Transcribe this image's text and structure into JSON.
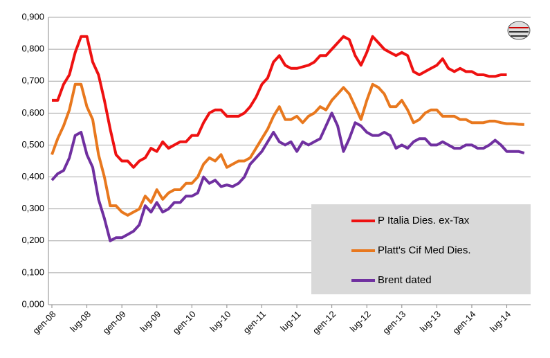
{
  "chart_data": {
    "type": "line",
    "categories": [
      "gen-08",
      null,
      null,
      null,
      null,
      null,
      "lug-08",
      null,
      null,
      null,
      null,
      null,
      "gen-09",
      null,
      null,
      null,
      null,
      null,
      "lug-09",
      null,
      null,
      null,
      null,
      null,
      "gen-10",
      null,
      null,
      null,
      null,
      null,
      "lug-10",
      null,
      null,
      null,
      null,
      null,
      "gen-11",
      null,
      null,
      null,
      null,
      null,
      "lug-11",
      null,
      null,
      null,
      null,
      null,
      "gen-12",
      null,
      null,
      null,
      null,
      null,
      "lug-12",
      null,
      null,
      null,
      null,
      null,
      "gen-13",
      null,
      null,
      null,
      null,
      null,
      "lug-13",
      null,
      null,
      null,
      null,
      null,
      "gen-14",
      null,
      null,
      null,
      null,
      null,
      "lug-14",
      null,
      null,
      null
    ],
    "series": [
      {
        "name": "P Italia Dies. ex-Tax",
        "color": "#ee1111",
        "values": [
          0.64,
          0.64,
          0.69,
          0.72,
          0.79,
          0.84,
          0.84,
          0.76,
          0.72,
          0.64,
          0.55,
          0.47,
          0.45,
          0.45,
          0.43,
          0.45,
          0.46,
          0.49,
          0.48,
          0.51,
          0.49,
          0.5,
          0.51,
          0.51,
          0.53,
          0.53,
          0.57,
          0.6,
          0.61,
          0.61,
          0.59,
          0.59,
          0.59,
          0.6,
          0.62,
          0.65,
          0.69,
          0.71,
          0.76,
          0.78,
          0.75,
          0.74,
          0.74,
          0.745,
          0.75,
          0.76,
          0.78,
          0.78,
          0.8,
          0.82,
          0.84,
          0.83,
          0.78,
          0.75,
          0.79,
          0.84,
          0.82,
          0.8,
          0.79,
          0.78,
          0.79,
          0.78,
          0.73,
          0.72,
          0.73,
          0.74,
          0.75,
          0.77,
          0.74,
          0.73,
          0.74,
          0.73,
          0.73,
          0.72,
          0.72,
          0.715,
          0.715,
          0.72,
          0.72,
          null,
          null,
          null
        ]
      },
      {
        "name": "Platt's Cif Med Dies.",
        "color": "#e8781e",
        "values": [
          0.47,
          0.52,
          0.56,
          0.61,
          0.69,
          0.69,
          0.62,
          0.58,
          0.47,
          0.4,
          0.31,
          0.31,
          0.29,
          0.28,
          0.29,
          0.3,
          0.34,
          0.32,
          0.36,
          0.33,
          0.35,
          0.36,
          0.36,
          0.38,
          0.38,
          0.4,
          0.44,
          0.46,
          0.45,
          0.47,
          0.43,
          0.44,
          0.45,
          0.45,
          0.46,
          0.49,
          0.52,
          0.55,
          0.59,
          0.62,
          0.58,
          0.58,
          0.59,
          0.57,
          0.59,
          0.6,
          0.62,
          0.61,
          0.64,
          0.66,
          0.68,
          0.66,
          0.62,
          0.58,
          0.64,
          0.69,
          0.68,
          0.66,
          0.62,
          0.62,
          0.64,
          0.61,
          0.57,
          0.58,
          0.6,
          0.61,
          0.61,
          0.59,
          0.59,
          0.59,
          0.58,
          0.58,
          0.57,
          0.57,
          0.57,
          0.575,
          0.575,
          0.57,
          0.567,
          0.567,
          0.565,
          0.564
        ]
      },
      {
        "name": "Brent dated",
        "color": "#7030a0",
        "values": [
          0.39,
          0.41,
          0.42,
          0.46,
          0.53,
          0.54,
          0.47,
          0.43,
          0.33,
          0.27,
          0.2,
          0.21,
          0.21,
          0.22,
          0.23,
          0.25,
          0.31,
          0.29,
          0.32,
          0.29,
          0.3,
          0.32,
          0.32,
          0.34,
          0.34,
          0.35,
          0.4,
          0.38,
          0.39,
          0.37,
          0.375,
          0.37,
          0.38,
          0.4,
          0.44,
          0.46,
          0.48,
          0.51,
          0.54,
          0.51,
          0.5,
          0.51,
          0.48,
          0.51,
          0.5,
          0.51,
          0.52,
          0.56,
          0.6,
          0.56,
          0.48,
          0.52,
          0.57,
          0.56,
          0.54,
          0.53,
          0.53,
          0.54,
          0.53,
          0.49,
          0.5,
          0.49,
          0.51,
          0.52,
          0.52,
          0.5,
          0.5,
          0.51,
          0.5,
          0.49,
          0.49,
          0.5,
          0.5,
          0.49,
          0.49,
          0.5,
          0.515,
          0.5,
          0.48,
          0.48,
          0.48,
          0.475
        ]
      }
    ],
    "ylim": [
      0,
      0.9
    ],
    "yticks": [
      {
        "value": 0,
        "label": "0,000"
      },
      {
        "value": 0.1,
        "label": "0,100"
      },
      {
        "value": 0.2,
        "label": "0,200"
      },
      {
        "value": 0.3,
        "label": "0,300"
      },
      {
        "value": 0.4,
        "label": "0,400"
      },
      {
        "value": 0.5,
        "label": "0,500"
      },
      {
        "value": 0.6,
        "label": "0,600"
      },
      {
        "value": 0.7,
        "label": "0,700"
      },
      {
        "value": 0.8,
        "label": "0,800"
      },
      {
        "value": 0.9,
        "label": "0,900"
      }
    ],
    "grid": true,
    "legend": "lower right"
  }
}
